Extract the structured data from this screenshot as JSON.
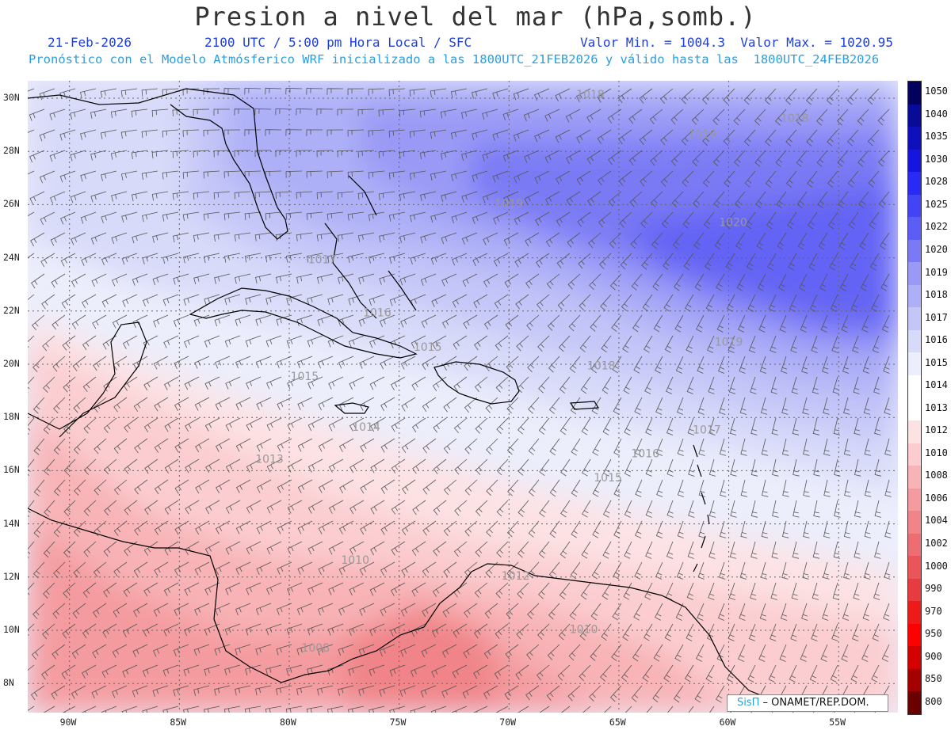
{
  "header": {
    "title": "Presion a nivel del mar (hPa,somb.)",
    "date": "21-Feb-2026",
    "time": "2100 UTC / 5:00 pm Hora Local / SFC",
    "minmax": "Valor Min. = 1004.3  Valor Max. = 1020.95",
    "model_info": "Pronóstico con el Modelo Atmósferico WRF inicializado a las 1800UTC_21FEB2026 y válido hasta las  1800UTC_24FEB2026"
  },
  "legend": {
    "levels": [
      "1050",
      "1040",
      "1035",
      "1030",
      "1028",
      "1025",
      "1022",
      "1020",
      "1019",
      "1018",
      "1017",
      "1016",
      "1015",
      "1014",
      "1013",
      "1012",
      "1010",
      "1008",
      "1006",
      "1004",
      "1002",
      "1000",
      "990",
      "970",
      "950",
      "900",
      "850",
      "800"
    ],
    "colors": [
      "#02025e",
      "#0a0a99",
      "#0f0fbd",
      "#1515dd",
      "#2a2af5",
      "#4444f7",
      "#5c5cf6",
      "#7a7af5",
      "#9a9af6",
      "#aeb0f7",
      "#c4c6f8",
      "#d8daf9",
      "#eceefc",
      "#ffffff",
      "#ffffff",
      "#fde2e4",
      "#fbcdd0",
      "#f8b3b6",
      "#f49b9f",
      "#f08488",
      "#ed6e72",
      "#ea5559",
      "#e83b3f",
      "#ee1a1a",
      "#ff0000",
      "#d50000",
      "#a50000",
      "#6b0000"
    ]
  },
  "axes": {
    "x_labels": [
      "90W",
      "85W",
      "80W",
      "75W",
      "70W",
      "65W",
      "60W",
      "55W"
    ],
    "y_labels": [
      "30N",
      "28N",
      "26N",
      "24N",
      "22N",
      "20N",
      "18N",
      "16N",
      "14N",
      "12N",
      "10N",
      "8N"
    ]
  },
  "contour_labels": [
    {
      "text": "1018",
      "lon": -66.3,
      "lat": 30.0
    },
    {
      "text": "1018",
      "lon": -57.0,
      "lat": 29.1
    },
    {
      "text": "1019",
      "lon": -61.2,
      "lat": 28.5
    },
    {
      "text": "1019",
      "lon": -70.0,
      "lat": 25.9
    },
    {
      "text": "1020",
      "lon": -59.8,
      "lat": 25.2
    },
    {
      "text": "1017",
      "lon": -78.5,
      "lat": 23.8
    },
    {
      "text": "1016",
      "lon": -76.0,
      "lat": 21.8
    },
    {
      "text": "1015",
      "lon": -73.7,
      "lat": 20.5
    },
    {
      "text": "1018",
      "lon": -65.8,
      "lat": 19.8
    },
    {
      "text": "1019",
      "lon": -60.0,
      "lat": 20.7
    },
    {
      "text": "1015",
      "lon": -79.3,
      "lat": 19.4
    },
    {
      "text": "1014",
      "lon": -76.5,
      "lat": 17.5
    },
    {
      "text": "1017",
      "lon": -61.0,
      "lat": 17.4
    },
    {
      "text": "1016",
      "lon": -63.8,
      "lat": 16.5
    },
    {
      "text": "1015",
      "lon": -65.5,
      "lat": 15.6
    },
    {
      "text": "1013",
      "lon": -80.9,
      "lat": 16.3
    },
    {
      "text": "1010",
      "lon": -77.0,
      "lat": 12.5
    },
    {
      "text": "1012",
      "lon": -69.7,
      "lat": 11.9
    },
    {
      "text": "1010",
      "lon": -66.6,
      "lat": 9.9
    },
    {
      "text": "1008",
      "lon": -78.8,
      "lat": 9.2
    }
  ],
  "credit": {
    "brand": "SisΠ",
    "org": " – ONAMET/REP.DOM."
  }
}
